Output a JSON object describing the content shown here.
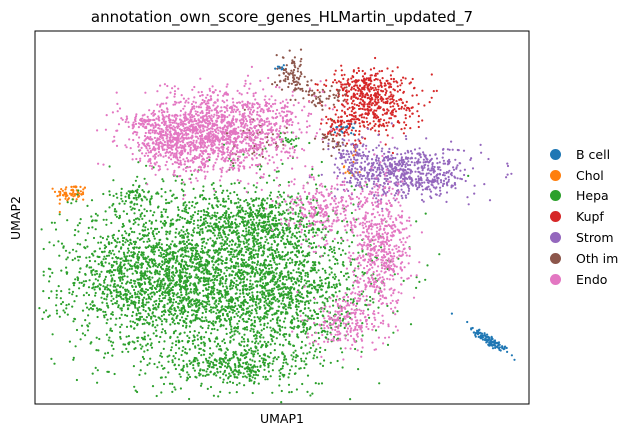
{
  "chart_data": {
    "type": "scatter",
    "title": "annotation_own_score_genes_HLMartin_updated_7",
    "xlabel": "UMAP1",
    "ylabel": "UMAP2",
    "ticks": "none",
    "grid": false,
    "legend_position": "right",
    "xlim": [
      0,
      100
    ],
    "ylim": [
      0,
      100
    ],
    "series": [
      {
        "name": "B cell",
        "color": "#1f77b4",
        "clusters": [
          {
            "cx": 92.0,
            "cy": 17.0,
            "sx": 2.6,
            "sy": 0.6,
            "n": 120,
            "rot": -42
          },
          {
            "cx": 49.5,
            "cy": 90.0,
            "sx": 0.6,
            "sy": 0.6,
            "n": 8,
            "rot": 0
          },
          {
            "cx": 63.0,
            "cy": 74.0,
            "sx": 2.0,
            "sy": 1.0,
            "n": 18,
            "rot": 0
          }
        ]
      },
      {
        "name": "Chol",
        "color": "#ff7f0e",
        "clusters": [
          {
            "cx": 7.5,
            "cy": 56.5,
            "sx": 1.6,
            "sy": 1.2,
            "n": 70,
            "rot": 0
          },
          {
            "cx": 64.0,
            "cy": 63.0,
            "sx": 1.0,
            "sy": 2.0,
            "n": 12,
            "rot": 0
          }
        ]
      },
      {
        "name": "Hepa",
        "color": "#2ca02c",
        "clusters": [
          {
            "cx": 37.0,
            "cy": 35.0,
            "sx": 14.0,
            "sy": 12.0,
            "n": 2600,
            "rot": 0
          },
          {
            "cx": 23.0,
            "cy": 33.0,
            "sx": 8.0,
            "sy": 9.0,
            "n": 900,
            "rot": 0
          },
          {
            "cx": 51.0,
            "cy": 28.0,
            "sx": 8.0,
            "sy": 9.0,
            "n": 700,
            "rot": 0
          },
          {
            "cx": 40.0,
            "cy": 10.0,
            "sx": 6.0,
            "sy": 2.5,
            "n": 280,
            "rot": 0
          },
          {
            "cx": 45.0,
            "cy": 49.0,
            "sx": 6.0,
            "sy": 4.0,
            "n": 350,
            "rot": 0
          },
          {
            "cx": 20.0,
            "cy": 56.0,
            "sx": 2.0,
            "sy": 1.2,
            "n": 50,
            "rot": 0
          },
          {
            "cx": 51.5,
            "cy": 71.0,
            "sx": 0.8,
            "sy": 1.2,
            "n": 18,
            "rot": 0
          }
        ]
      },
      {
        "name": "Kupf",
        "color": "#d62728",
        "clusters": [
          {
            "cx": 68.0,
            "cy": 81.0,
            "sx": 4.5,
            "sy": 4.0,
            "n": 480,
            "rot": 0
          },
          {
            "cx": 62.0,
            "cy": 74.0,
            "sx": 2.5,
            "sy": 2.0,
            "n": 60,
            "rot": 0
          },
          {
            "cx": 66.0,
            "cy": 86.0,
            "sx": 3.0,
            "sy": 2.0,
            "n": 80,
            "rot": 0
          }
        ]
      },
      {
        "name": "Strom",
        "color": "#9467bd",
        "clusters": [
          {
            "cx": 75.0,
            "cy": 62.0,
            "sx": 6.5,
            "sy": 3.5,
            "n": 650,
            "rot": 0
          },
          {
            "cx": 64.0,
            "cy": 67.0,
            "sx": 2.0,
            "sy": 2.5,
            "n": 60,
            "rot": 0
          }
        ]
      },
      {
        "name": "Oth im",
        "color": "#8c564b",
        "clusters": [
          {
            "cx": 52.0,
            "cy": 88.0,
            "sx": 1.5,
            "sy": 2.5,
            "n": 90,
            "rot": 0
          },
          {
            "cx": 59.0,
            "cy": 82.0,
            "sx": 2.5,
            "sy": 1.5,
            "n": 50,
            "rot": 0
          },
          {
            "cx": 60.0,
            "cy": 70.0,
            "sx": 1.5,
            "sy": 1.5,
            "n": 30,
            "rot": 0
          },
          {
            "cx": 45.0,
            "cy": 70.0,
            "sx": 3.0,
            "sy": 3.0,
            "n": 40,
            "rot": 0
          }
        ]
      },
      {
        "name": "Endo",
        "color": "#e377c2",
        "clusters": [
          {
            "cx": 37.0,
            "cy": 73.0,
            "sx": 7.5,
            "sy": 5.5,
            "n": 1400,
            "rot": 0
          },
          {
            "cx": 27.0,
            "cy": 70.0,
            "sx": 4.0,
            "sy": 3.5,
            "n": 300,
            "rot": 0
          },
          {
            "cx": 70.0,
            "cy": 42.0,
            "sx": 3.0,
            "sy": 9.0,
            "n": 600,
            "rot": 0
          },
          {
            "cx": 58.0,
            "cy": 52.0,
            "sx": 4.0,
            "sy": 4.0,
            "n": 250,
            "rot": 0
          },
          {
            "cx": 63.0,
            "cy": 22.0,
            "sx": 3.5,
            "sy": 4.0,
            "n": 220,
            "rot": 0
          },
          {
            "cx": 50.0,
            "cy": 78.0,
            "sx": 3.0,
            "sy": 3.0,
            "n": 70,
            "rot": 0
          },
          {
            "cx": 22.0,
            "cy": 76.0,
            "sx": 2.5,
            "sy": 1.0,
            "n": 50,
            "rot": 0
          }
        ]
      }
    ]
  }
}
